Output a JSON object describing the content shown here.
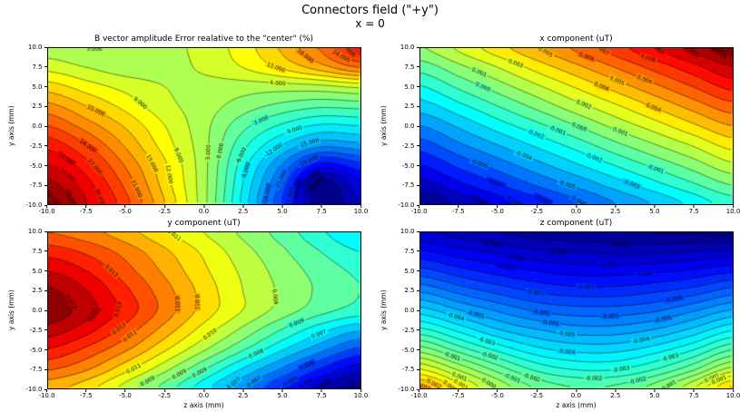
{
  "figure": {
    "title": "Connectors field (\"+y\")",
    "subtitle": "x = 0",
    "background_color": "#ffffff"
  },
  "axes": {
    "x_label": "z axis (mm)",
    "y_label": "y axis (mm)",
    "x_range": [
      -10,
      10
    ],
    "y_range": [
      -10,
      10
    ],
    "x_ticks": [
      "-10.0",
      "-7.5",
      "-5.0",
      "-2.5",
      "0.0",
      "2.5",
      "5.0",
      "7.5",
      "10.0"
    ],
    "y_ticks": [
      "-10.0",
      "-7.5",
      "-5.0",
      "-2.5",
      "0.0",
      "2.5",
      "5.0",
      "7.5",
      "10.0"
    ]
  },
  "colormap": {
    "name": "jet",
    "low_color": "#00007f",
    "high_color": "#7f0000",
    "line_color": "#000000"
  },
  "chart_data": [
    {
      "type": "contour",
      "title": "B vector amplitude Error realative to the \"center\" (%)",
      "level_step": 3,
      "label_decimals": 3,
      "show_x_label": false,
      "x": [
        -10,
        -7.5,
        -5,
        -2.5,
        0,
        2.5,
        5,
        7.5,
        10
      ],
      "y": [
        -10,
        -7.5,
        -5,
        -2.5,
        0,
        2.5,
        5,
        7.5,
        10
      ],
      "values": [
        [
          40,
          33,
          25,
          15,
          4,
          -10,
          -24,
          -38,
          -33
        ],
        [
          37,
          31,
          23,
          13.5,
          4,
          -9,
          -22,
          -37,
          -31
        ],
        [
          33,
          28,
          20.5,
          12.5,
          4,
          -7.5,
          -18,
          -28,
          -25
        ],
        [
          29,
          24,
          17.5,
          10.5,
          4,
          -5,
          -12,
          -17,
          -16
        ],
        [
          24,
          19.5,
          14.5,
          9,
          4,
          -2,
          -6.5,
          -9.5,
          -9
        ],
        [
          19,
          15,
          11,
          7,
          4.5,
          1.5,
          -1,
          -2.5,
          -2
        ],
        [
          13.5,
          10.5,
          8,
          6,
          5,
          4.5,
          4.5,
          5,
          6.5
        ],
        [
          8,
          6,
          4.5,
          5,
          6.5,
          9,
          12.5,
          16.5,
          21
        ],
        [
          4.5,
          3,
          3.5,
          5,
          7,
          10.5,
          15.5,
          21.5,
          29
        ]
      ]
    },
    {
      "type": "contour",
      "title": "x component (uT)",
      "level_step": 0.001,
      "label_decimals": 3,
      "show_x_label": false,
      "x": [
        -10,
        -7.5,
        -5,
        -2.5,
        0,
        2.5,
        5,
        7.5,
        10
      ],
      "y": [
        -10,
        -7.5,
        -5,
        -2.5,
        0,
        2.5,
        5,
        7.5,
        10
      ],
      "values": [
        [
          -0.0109,
          -0.0097,
          -0.0086,
          -0.0074,
          -0.0062,
          -0.005,
          -0.0039,
          -0.0027,
          -0.0015
        ],
        [
          -0.0094,
          -0.0082,
          -0.007,
          -0.0058,
          -0.0047,
          -0.0035,
          -0.0023,
          -0.0011,
          0.0001
        ],
        [
          -0.008,
          -0.0067,
          -0.0055,
          -0.0043,
          -0.0031,
          -0.0019,
          -0.0007,
          0.0005,
          0.0018
        ],
        [
          -0.0065,
          -0.0052,
          -0.004,
          -0.0028,
          -0.0016,
          -0.0003,
          0.0009,
          0.0021,
          0.0034
        ],
        [
          -0.005,
          -0.0038,
          -0.0025,
          -0.0013,
          0.0,
          0.0013,
          0.0025,
          0.0038,
          0.005
        ],
        [
          -0.0035,
          -0.0023,
          -0.001,
          0.0003,
          0.0016,
          0.0028,
          0.0041,
          0.0054,
          0.0066
        ],
        [
          -0.0021,
          -0.0008,
          0.0005,
          0.0018,
          0.0031,
          0.0044,
          0.0057,
          0.007,
          0.0083
        ],
        [
          -0.0006,
          0.0007,
          0.002,
          0.0034,
          0.0047,
          0.006,
          0.0073,
          0.0086,
          0.0099
        ],
        [
          0.0009,
          0.0022,
          0.0036,
          0.0049,
          0.0062,
          0.0075,
          0.0089,
          0.0102,
          0.0115
        ]
      ]
    },
    {
      "type": "contour",
      "title": "y component (uT)",
      "level_step": 0.0005,
      "label_decimals": 3,
      "show_x_label": true,
      "x": [
        -10,
        -7.5,
        -5,
        -2.5,
        0,
        2.5,
        5,
        7.5,
        10
      ],
      "y": [
        -10,
        -7.5,
        -5,
        -2.5,
        0,
        2.5,
        5,
        7.5,
        10
      ],
      "values": [
        [
          0.0112,
          0.0107,
          0.0098,
          0.0088,
          0.0077,
          0.0066,
          0.0055,
          0.0045,
          0.0038
        ],
        [
          0.0121,
          0.0116,
          0.0107,
          0.0097,
          0.0086,
          0.0075,
          0.0065,
          0.0055,
          0.0047
        ],
        [
          0.013,
          0.0124,
          0.0116,
          0.0106,
          0.0096,
          0.0086,
          0.0076,
          0.0067,
          0.0059
        ],
        [
          0.0138,
          0.0132,
          0.0123,
          0.0113,
          0.0103,
          0.0094,
          0.0085,
          0.0077,
          0.0071
        ],
        [
          0.0144,
          0.0137,
          0.0128,
          0.0118,
          0.0108,
          0.01,
          0.0093,
          0.0087,
          0.0083
        ],
        [
          0.0141,
          0.0135,
          0.0126,
          0.0117,
          0.0108,
          0.01,
          0.0094,
          0.0089,
          0.0085
        ],
        [
          0.0135,
          0.013,
          0.0122,
          0.0114,
          0.0106,
          0.0099,
          0.0093,
          0.0088,
          0.0084
        ],
        [
          0.0128,
          0.0124,
          0.0118,
          0.0111,
          0.0104,
          0.0097,
          0.0091,
          0.0085,
          0.008
        ],
        [
          0.012,
          0.0117,
          0.0112,
          0.0106,
          0.01,
          0.0094,
          0.0088,
          0.0081,
          0.0075
        ]
      ]
    },
    {
      "type": "contour",
      "title": "z component (uT)",
      "level_step": 0.0005,
      "label_decimals": 3,
      "show_x_label": true,
      "color_vmax": 0.008,
      "x": [
        -10,
        -7.5,
        -5,
        -2.5,
        0,
        2.5,
        5,
        7.5,
        10
      ],
      "y": [
        -10,
        -7.5,
        -5,
        -2.5,
        0,
        2.5,
        5,
        7.5,
        10
      ],
      "values": [
        [
          0.0026,
          0.0012,
          -0.0001,
          -0.0011,
          -0.0015,
          -0.0014,
          -0.0008,
          0.0004,
          0.0021
        ],
        [
          0.0009,
          -0.0002,
          -0.0013,
          -0.0022,
          -0.0026,
          -0.0026,
          -0.0021,
          -0.0012,
          0.0001
        ],
        [
          -0.0008,
          -0.0018,
          -0.0027,
          -0.0034,
          -0.0037,
          -0.0037,
          -0.0033,
          -0.0026,
          -0.0016
        ],
        [
          -0.0024,
          -0.0032,
          -0.004,
          -0.0045,
          -0.0048,
          -0.0048,
          -0.0045,
          -0.0039,
          -0.0031
        ],
        [
          -0.0038,
          -0.0045,
          -0.0051,
          -0.0056,
          -0.0058,
          -0.0058,
          -0.0056,
          -0.0051,
          -0.0045
        ],
        [
          -0.0051,
          -0.0057,
          -0.0062,
          -0.0066,
          -0.0068,
          -0.0068,
          -0.0066,
          -0.0063,
          -0.0058
        ],
        [
          -0.0063,
          -0.0068,
          -0.0072,
          -0.0075,
          -0.0077,
          -0.0077,
          -0.0076,
          -0.0074,
          -0.0071
        ],
        [
          -0.0074,
          -0.0078,
          -0.0081,
          -0.0084,
          -0.0085,
          -0.0086,
          -0.0086,
          -0.0085,
          -0.0084
        ],
        [
          -0.0084,
          -0.0087,
          -0.009,
          -0.0092,
          -0.0093,
          -0.0094,
          -0.0095,
          -0.0096,
          -0.0097
        ]
      ]
    }
  ]
}
